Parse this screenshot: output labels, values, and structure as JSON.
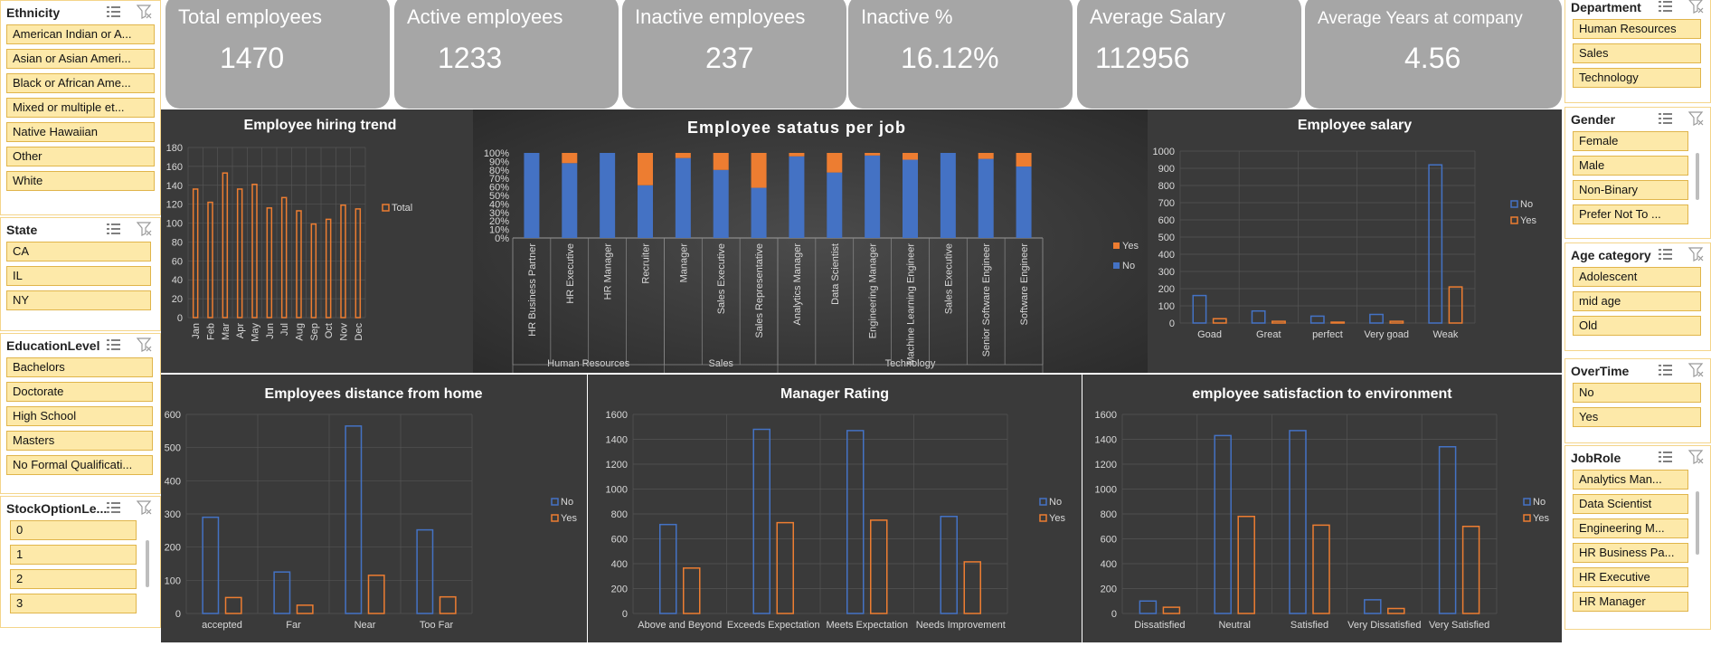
{
  "colors": {
    "no": "#4472c4",
    "yes": "#ed7d31",
    "panel": "#3a3a3a",
    "kpi": "#a6a6a6",
    "slicer_item": "#fde9a9"
  },
  "kpis": [
    {
      "title": "Total employees",
      "value": "1470"
    },
    {
      "title": "Active employees",
      "value": "1233"
    },
    {
      "title": "Inactive employees",
      "value": "237"
    },
    {
      "title": "Inactive %",
      "value": "16.12%"
    },
    {
      "title": "Average Salary",
      "value": "112956"
    },
    {
      "title": "Average Years at company",
      "value": "4.56"
    }
  ],
  "slicers": {
    "ethnicity": {
      "title": "Ethnicity",
      "items": [
        "American Indian or A...",
        "Asian or Asian Ameri...",
        "Black or African Ame...",
        "Mixed or multiple et...",
        "Native Hawaiian",
        "Other",
        "White"
      ]
    },
    "state": {
      "title": "State",
      "items": [
        "CA",
        "IL",
        "NY"
      ]
    },
    "education": {
      "title": "EducationLevel",
      "items": [
        "Bachelors",
        "Doctorate",
        "High School",
        "Masters",
        "No Formal Qualificati..."
      ]
    },
    "stock": {
      "title": "StockOptionLe...",
      "items": [
        "0",
        "1",
        "2",
        "3"
      ]
    },
    "department": {
      "title": "Department",
      "items": [
        "Human Resources",
        "Sales",
        "Technology"
      ]
    },
    "gender": {
      "title": "Gender",
      "items": [
        "Female",
        "Male",
        "Non-Binary",
        "Prefer Not To ..."
      ]
    },
    "age": {
      "title": "Age category",
      "items": [
        "Adolescent",
        "mid age",
        "Old"
      ]
    },
    "overtime": {
      "title": "OverTime",
      "items": [
        "No",
        "Yes"
      ]
    },
    "jobrole": {
      "title": "JobRole",
      "items": [
        "Analytics Man...",
        "Data Scientist",
        "Engineering M...",
        "HR Business Pa...",
        "HR Executive",
        "HR Manager"
      ]
    }
  },
  "chart_data": [
    {
      "id": "hiring",
      "type": "bar",
      "title": "Employee hiring trend",
      "categories": [
        "Jan",
        "Feb",
        "Mar",
        "Apr",
        "May",
        "Jun",
        "Jul",
        "Aug",
        "Sep",
        "Oct",
        "Nov",
        "Dec"
      ],
      "series": [
        {
          "name": "Total",
          "values": [
            136,
            122,
            153,
            136,
            141,
            116,
            127,
            113,
            99,
            104,
            119,
            115
          ]
        }
      ],
      "ylim": [
        0,
        180
      ],
      "yticks": [
        0,
        20,
        40,
        60,
        80,
        100,
        120,
        140,
        160,
        180
      ],
      "legend": "right"
    },
    {
      "id": "status",
      "type": "bar",
      "stacked": true,
      "title": "Employee satatus per job",
      "categories": [
        "HR Business Partner",
        "HR Executive",
        "HR Manager",
        "Recruiter",
        "Manager",
        "Sales Executive",
        "Sales Representative",
        "Analytics Manager",
        "Data Scientist",
        "Engineering Manager",
        "Machine Learning Engineer",
        "Sales Executive",
        "Senior Software Engineer",
        "Software Engineer"
      ],
      "groups": [
        {
          "name": "Human Resources",
          "span": 4
        },
        {
          "name": "Sales",
          "span": 3
        },
        {
          "name": "Technology",
          "span": 7
        }
      ],
      "series": [
        {
          "name": "No",
          "values": [
            100,
            88,
            100,
            62,
            94,
            80,
            59,
            96,
            77,
            97,
            92,
            100,
            93,
            84
          ]
        },
        {
          "name": "Yes",
          "values": [
            0,
            12,
            0,
            38,
            6,
            20,
            41,
            4,
            23,
            3,
            8,
            0,
            7,
            16
          ]
        }
      ],
      "ylim": [
        0,
        100
      ],
      "yticks": [
        "0%",
        "10%",
        "20%",
        "30%",
        "40%",
        "50%",
        "60%",
        "70%",
        "80%",
        "90%",
        "100%"
      ],
      "legend": "right"
    },
    {
      "id": "salary",
      "type": "bar",
      "title": "Employee salary",
      "categories": [
        "Goad",
        "Great",
        "perfect",
        "Very goad",
        "Weak"
      ],
      "series": [
        {
          "name": "No",
          "values": [
            160,
            70,
            40,
            50,
            920
          ]
        },
        {
          "name": "Yes",
          "values": [
            25,
            10,
            5,
            10,
            210
          ]
        }
      ],
      "ylim": [
        0,
        1000
      ],
      "yticks": [
        0,
        100,
        200,
        300,
        400,
        500,
        600,
        700,
        800,
        900,
        1000
      ],
      "legend": "right"
    },
    {
      "id": "distance",
      "type": "bar",
      "title": "Employees distance from home",
      "categories": [
        "accepted",
        "Far",
        "Near",
        "Too Far"
      ],
      "series": [
        {
          "name": "No",
          "values": [
            290,
            125,
            565,
            252
          ]
        },
        {
          "name": "Yes",
          "values": [
            48,
            25,
            115,
            50
          ]
        }
      ],
      "ylim": [
        0,
        600
      ],
      "yticks": [
        0,
        100,
        200,
        300,
        400,
        500,
        600
      ],
      "legend": "right"
    },
    {
      "id": "manager",
      "type": "bar",
      "title": "Manager Rating",
      "categories": [
        "Above and Beyond",
        "Exceeds Expectation",
        "Meets Expectation",
        "Needs Improvement"
      ],
      "series": [
        {
          "name": "No",
          "values": [
            715,
            1480,
            1470,
            780
          ]
        },
        {
          "name": "Yes",
          "values": [
            365,
            730,
            750,
            415
          ]
        }
      ],
      "ylim": [
        0,
        1600
      ],
      "yticks": [
        0,
        200,
        400,
        600,
        800,
        1000,
        1200,
        1400,
        1600
      ],
      "legend": "right"
    },
    {
      "id": "satisfaction",
      "type": "bar",
      "title": "employee satisfaction to environment",
      "categories": [
        "Dissatisfied",
        "Neutral",
        "Satisfied",
        "Very Dissatisfied",
        "Very Satisfied"
      ],
      "series": [
        {
          "name": "No",
          "values": [
            100,
            1430,
            1470,
            110,
            1340
          ]
        },
        {
          "name": "Yes",
          "values": [
            50,
            780,
            710,
            40,
            700
          ]
        }
      ],
      "ylim": [
        0,
        1600
      ],
      "yticks": [
        0,
        200,
        400,
        600,
        800,
        1000,
        1200,
        1400,
        1600
      ],
      "legend": "right"
    }
  ]
}
